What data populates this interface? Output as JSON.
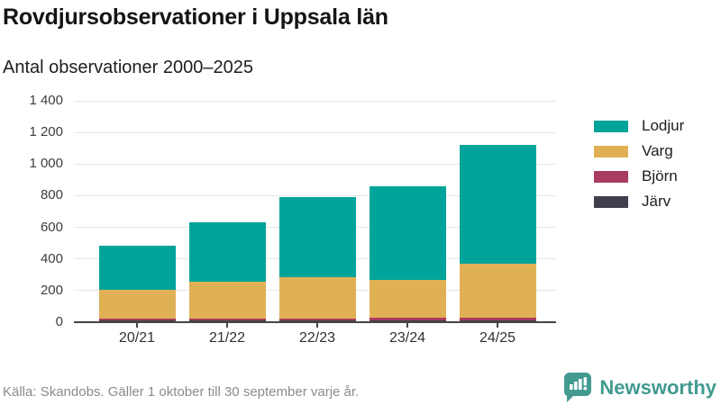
{
  "header": {
    "title": "Rovdjursobservationer i Uppsala län",
    "subtitle": "Antal observationer 2000–2025"
  },
  "chart_data": {
    "type": "bar",
    "stacked": true,
    "title": "Rovdjursobservationer i Uppsala län",
    "subtitle": "Antal observationer 2000–2025",
    "categories": [
      "20/21",
      "21/22",
      "22/23",
      "23/24",
      "24/25"
    ],
    "series": [
      {
        "name": "Lodjur",
        "color": "#00a49a",
        "values": [
          280,
          375,
          505,
          595,
          750
        ]
      },
      {
        "name": "Varg",
        "color": "#e0b154",
        "values": [
          180,
          230,
          260,
          235,
          340
        ]
      },
      {
        "name": "Björn",
        "color": "#a93c60",
        "values": [
          15,
          15,
          15,
          20,
          20
        ]
      },
      {
        "name": "Järv",
        "color": "#413e4d",
        "values": [
          10,
          10,
          10,
          10,
          10
        ]
      }
    ],
    "totals": [
      485,
      630,
      790,
      860,
      1120
    ],
    "xlabel": "",
    "ylabel": "Antal observationer",
    "ylim": [
      0,
      1400
    ],
    "ytick_step": 200,
    "ytick_labels": [
      "0",
      "200",
      "400",
      "600",
      "800",
      "1 000",
      "1 200",
      "1 400"
    ],
    "grid": true,
    "legend_position": "right",
    "stack_order_bottom_to_top": [
      "Järv",
      "Björn",
      "Varg",
      "Lodjur"
    ]
  },
  "footer": {
    "source": "Källa: Skandobs. Gäller 1 oktober till 30 september varje år.",
    "brand": "Newsworthy"
  },
  "colors": {
    "lodjur": "#00a49a",
    "varg": "#e0b154",
    "bjorn": "#a93c60",
    "jarv": "#413e4d",
    "brand_teal": "#429a90",
    "gridline": "#e6e6e6",
    "axis": "#454545"
  }
}
